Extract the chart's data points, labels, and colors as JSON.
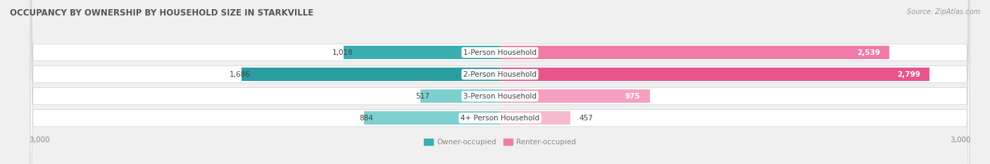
{
  "title": "OCCUPANCY BY OWNERSHIP BY HOUSEHOLD SIZE IN STARKVILLE",
  "source": "Source: ZipAtlas.com",
  "categories": [
    "1-Person Household",
    "2-Person Household",
    "3-Person Household",
    "4+ Person Household"
  ],
  "owner_values": [
    1018,
    1686,
    517,
    884
  ],
  "renter_values": [
    2539,
    2799,
    975,
    457
  ],
  "owner_colors": [
    "#3AAFB0",
    "#2A9DA0",
    "#7ECFCF",
    "#7ECFCF"
  ],
  "renter_colors": [
    "#F07BA8",
    "#E8558A",
    "#F5A0C0",
    "#F5BBCC"
  ],
  "background_color": "#f0f0f0",
  "row_bg_color": "#e8e8e8",
  "xlim": 3000,
  "legend_owner": "Owner-occupied",
  "legend_renter": "Renter-occupied",
  "legend_owner_color": "#3AAFB0",
  "legend_renter_color": "#F07BA8",
  "title_fontsize": 8.5,
  "source_fontsize": 7,
  "value_fontsize": 7.5,
  "cat_fontsize": 7.5,
  "tick_fontsize": 7.5,
  "bar_height": 0.62
}
